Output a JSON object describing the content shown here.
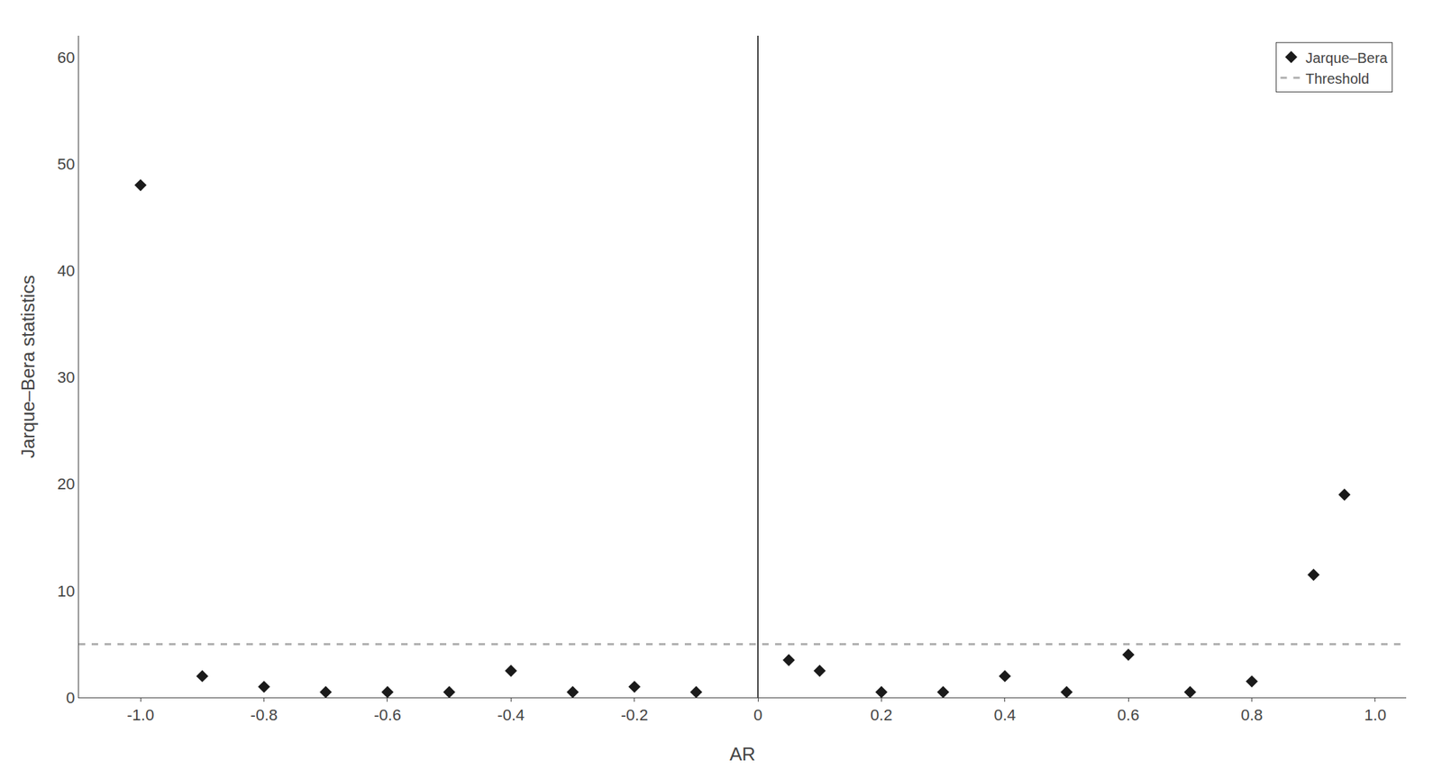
{
  "chart_data": {
    "type": "scatter",
    "xlabel": "AR",
    "ylabel": "Jarque–Bera statistics",
    "x": [
      -1.0,
      -0.9,
      -0.8,
      -0.7,
      -0.6,
      -0.5,
      -0.4,
      -0.3,
      -0.2,
      -0.1,
      0.05,
      0.1,
      0.2,
      0.3,
      0.4,
      0.5,
      0.6,
      0.7,
      0.8,
      0.9,
      0.95
    ],
    "series": [
      {
        "name": "Jarque–Bera",
        "type": "scatter",
        "marker": "diamond",
        "color": "#1a1a1a",
        "values": [
          48.0,
          2.0,
          1.0,
          0.5,
          0.5,
          0.5,
          2.5,
          0.5,
          1.0,
          0.5,
          3.5,
          2.5,
          0.5,
          0.5,
          2.0,
          0.5,
          4.0,
          0.5,
          1.5,
          11.5,
          19.0
        ]
      },
      {
        "name": "Threshold",
        "type": "hline",
        "line_style": "dashed",
        "color": "#b0b0b0",
        "y": 5.0
      },
      {
        "type": "vline",
        "color": "#000000",
        "x": 0.0
      }
    ],
    "xlim": [
      -1.1,
      1.05
    ],
    "ylim": [
      0,
      62
    ],
    "xticks": [
      {
        "value": -1.0,
        "label": "-1.0"
      },
      -0.8,
      -0.6,
      -0.4,
      -0.2,
      0,
      0.2,
      0.4,
      0.6,
      0.8,
      {
        "value": 1.0,
        "label": "1.0"
      }
    ],
    "yticks": [
      0,
      10,
      20,
      30,
      40,
      50,
      60
    ],
    "grid": false,
    "legend": "upper right"
  }
}
